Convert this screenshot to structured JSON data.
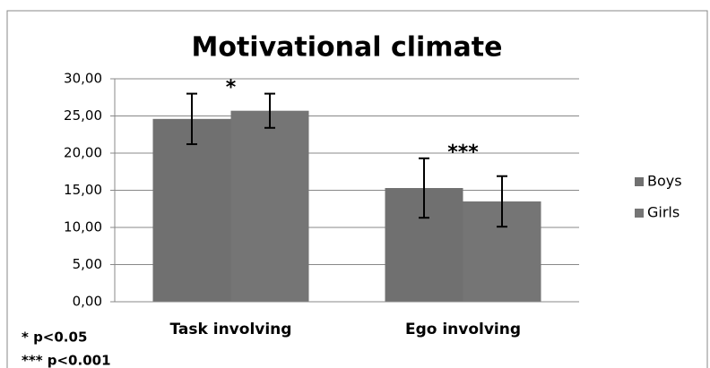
{
  "chart_data": {
    "type": "bar",
    "title": "Motivational climate",
    "categories": [
      "Task involving",
      "Ego involving"
    ],
    "series": [
      {
        "name": "Boys",
        "color": "#707070",
        "values": [
          24.6,
          15.3
        ],
        "errors": [
          3.4,
          4.0
        ]
      },
      {
        "name": "Girls",
        "color": "#757575",
        "values": [
          25.7,
          13.5
        ],
        "errors": [
          2.3,
          3.4
        ]
      }
    ],
    "group_annotations": [
      "*",
      "***"
    ],
    "footnotes": [
      "* p<0.05",
      "*** p<0.001"
    ],
    "ylim": [
      0,
      30
    ],
    "yticks": [
      {
        "value": 0,
        "label": "0,00"
      },
      {
        "value": 5,
        "label": "5,00"
      },
      {
        "value": 10,
        "label": "10,00"
      },
      {
        "value": 15,
        "label": "15,00"
      },
      {
        "value": 20,
        "label": "20,00"
      },
      {
        "value": 25,
        "label": "25,00"
      },
      {
        "value": 30,
        "label": "30,00"
      }
    ],
    "grid": true,
    "legend": "right"
  }
}
